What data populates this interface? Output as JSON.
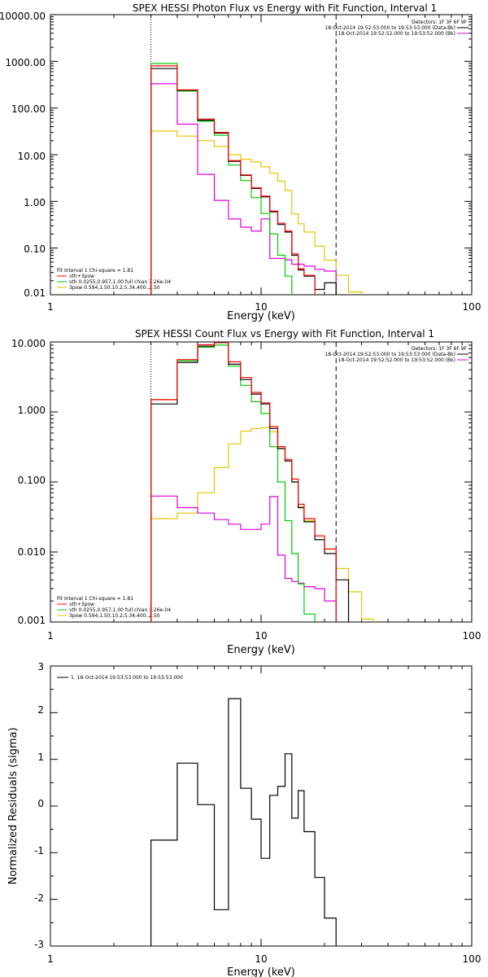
{
  "colors": {
    "black": "#000000",
    "red": "#ff0000",
    "green": "#00cc00",
    "magenta": "#e000e0",
    "yellow": "#e6c300"
  },
  "chart_data": [
    {
      "type": "line",
      "title": "SPEX HESSI Photon Flux vs Energy with Fit Function, Interval 1",
      "xlabel": "Energy (keV)",
      "ylabel": "",
      "xscale": "log",
      "yscale": "log",
      "xlim": [
        1,
        100
      ],
      "ylim": [
        0.01,
        10000
      ],
      "xtick_labels": [
        "1",
        "10",
        "100"
      ],
      "ytick_values": [
        0.01,
        0.1,
        1,
        10,
        100,
        1000,
        10000
      ],
      "ytick_labels": [
        "0.01",
        "0.10",
        "1.00",
        "10.00",
        "100.00",
        "1000.00",
        "10000.00"
      ],
      "legend_top": {
        "placement": "top-right",
        "header": "Detectors: 1F 3F 6F 9F",
        "entries": [
          {
            "label": "18-Oct-2014 19:52:53.000 to 19:53:53.000 (Data-Bk)",
            "color": "#000000"
          },
          {
            "label": "18-Oct-2014 19:52:52.000 to 19:53:52.000 (Bk)",
            "color": "#e000e0"
          }
        ]
      },
      "legend_bottom": {
        "placement": "bottom-left",
        "header": "Fit Interval 1    Chi-square = 1.81",
        "entries": [
          {
            "label": "vth+3pow",
            "color": "#ff0000"
          },
          {
            "label": "vth 0.0255,0.957,1.00  full chian 1.26e-04",
            "color": "#00cc00"
          },
          {
            "label": "3pow 0.594,1.50,10.2,5.34,400.,2.50",
            "color": "#e6c300"
          }
        ]
      },
      "edges": [
        3.0,
        4.0,
        5.0,
        6.0,
        7.0,
        8.0,
        9.0,
        10.0,
        11.0,
        12.0,
        13.0,
        14.0,
        15.0,
        16.0,
        18.0,
        20.0,
        22.7,
        26.0,
        30.0
      ],
      "vlines": {
        "dotted": 3.0,
        "dashed": 22.7
      },
      "series": [
        {
          "key": "data",
          "color": "#000000",
          "values": [
            700,
            240,
            55,
            29,
            7.2,
            3.6,
            1.9,
            1.25,
            0.6,
            0.32,
            0.22,
            0.07,
            0.034,
            0.025,
            0.013,
            0.018
          ]
        },
        {
          "key": "fit",
          "color": "#ff0000",
          "values": [
            800,
            245,
            58,
            30,
            7.5,
            3.7,
            1.95,
            1.3,
            0.62,
            0.34,
            0.23,
            0.075,
            0.036,
            0.026
          ]
        },
        {
          "key": "vth",
          "color": "#00cc00",
          "values": [
            900,
            230,
            52,
            26,
            6.0,
            2.8,
            1.2,
            0.55,
            0.2,
            0.07,
            0.025,
            0.0094
          ]
        },
        {
          "key": "pow",
          "color": "#e6c300",
          "values": [
            32,
            25,
            20,
            15,
            10,
            8,
            7,
            5.5,
            4.0,
            2.7,
            1.7,
            0.54,
            0.33,
            0.22,
            0.11,
            0.055,
            0.026,
            0.0115
          ]
        },
        {
          "key": "bk",
          "color": "#e000e0",
          "values": [
            330,
            45,
            3.8,
            1.05,
            0.42,
            0.28,
            0.23,
            0.42,
            0.06,
            0.06,
            0.056,
            0.045,
            0.045,
            0.041,
            0.035,
            0.032
          ]
        }
      ]
    },
    {
      "type": "line",
      "title": "SPEX HESSI Count Flux vs Energy with Fit Function, Interval 1",
      "xlabel": "Energy (keV)",
      "ylabel": "",
      "xscale": "log",
      "yscale": "log",
      "xlim": [
        1,
        100
      ],
      "ylim": [
        0.001,
        10
      ],
      "xtick_labels": [
        "1",
        "10",
        "100"
      ],
      "ytick_values": [
        0.001,
        0.01,
        0.1,
        1,
        10
      ],
      "ytick_labels": [
        "0.001",
        "0.010",
        "0.100",
        "1.000",
        "10.000"
      ],
      "legend_top": {
        "placement": "top-right",
        "header": "Detectors: 1F 3F 6F 9F",
        "entries": [
          {
            "label": "18-Oct-2014 19:52:53.000 to 19:53:53.000 (Data-Bk)",
            "color": "#000000"
          },
          {
            "label": "18-Oct-2014 19:52:52.000 to 19:53:52.000 (Bk)",
            "color": "#e000e0"
          }
        ]
      },
      "legend_bottom": {
        "placement": "bottom-left",
        "header": "Fit Interval 1    Chi-square = 1.81",
        "entries": [
          {
            "label": "vth+3pow",
            "color": "#ff0000"
          },
          {
            "label": "vth 0.0255,0.957,1.00  full chian 1.26e-04",
            "color": "#00cc00"
          },
          {
            "label": "3pow 0.594,1.50,10.2,5.34,400.,2.50",
            "color": "#e6c300"
          }
        ]
      },
      "edges": [
        3.0,
        4.0,
        5.0,
        6.0,
        7.0,
        8.0,
        9.0,
        10.0,
        11.0,
        12.0,
        13.0,
        14.0,
        15.0,
        16.0,
        18.0,
        20.0,
        22.7,
        26.0,
        30.0,
        34.0
      ],
      "vlines": {
        "dotted": 3.0,
        "dashed": 22.7
      },
      "series": [
        {
          "key": "data",
          "color": "#000000",
          "values": [
            1.3,
            5.1,
            8.7,
            9.8,
            4.8,
            2.9,
            1.8,
            1.3,
            0.58,
            0.3,
            0.2,
            0.1,
            0.043,
            0.027,
            0.015,
            0.0095,
            0.004
          ]
        },
        {
          "key": "fit",
          "color": "#ff0000",
          "values": [
            1.5,
            5.6,
            9.1,
            10.0,
            5.2,
            3.1,
            1.9,
            1.35,
            0.62,
            0.32,
            0.21,
            0.11,
            0.048,
            0.03,
            0.017,
            0.011
          ]
        },
        {
          "key": "vth",
          "color": "#00cc00",
          "values": [
            1.5,
            5.4,
            8.4,
            9.0,
            4.5,
            2.4,
            1.4,
            0.95,
            0.32,
            0.1,
            0.028,
            0.0095,
            0.0035,
            0.0013
          ]
        },
        {
          "key": "pow",
          "color": "#e6c300",
          "values": [
            0.03,
            0.036,
            0.07,
            0.16,
            0.35,
            0.53,
            0.58,
            0.6,
            0.52,
            0.3,
            0.2,
            0.1,
            0.044,
            0.028,
            0.017,
            0.011,
            0.0058,
            0.0027,
            0.0011
          ]
        },
        {
          "key": "bk",
          "color": "#e000e0",
          "values": [
            0.063,
            0.043,
            0.036,
            0.029,
            0.025,
            0.021,
            0.021,
            0.025,
            0.062,
            0.009,
            0.0042,
            0.0038,
            0.0036,
            0.0032,
            0.003,
            0.002
          ]
        }
      ]
    },
    {
      "type": "line",
      "title": "",
      "xlabel": "Energy (keV)",
      "ylabel": "Normalized Residuals (sigma)",
      "xscale": "log",
      "yscale": "linear",
      "xlim": [
        1,
        100
      ],
      "ylim": [
        -3,
        3
      ],
      "xtick_labels": [
        "1",
        "10",
        "100"
      ],
      "ytick_values": [
        -3,
        -2,
        -1,
        0,
        1,
        2,
        3
      ],
      "ytick_labels": [
        "-3",
        "-2",
        "-1",
        "0",
        "1",
        "2",
        "3"
      ],
      "legend": {
        "placement": "top-left",
        "entries": [
          {
            "label": "1. 18-Oct-2014 19:53:53.000 to 19:53:53.000",
            "color": "#000000"
          }
        ]
      },
      "edges": [
        3.0,
        4.0,
        5.0,
        6.0,
        7.0,
        8.0,
        9.0,
        10.0,
        11.0,
        12.0,
        13.0,
        14.0,
        15.0,
        16.0,
        18.0,
        20.0,
        22.7
      ],
      "series": [
        {
          "key": "resid",
          "color": "#000000",
          "values": [
            -0.73,
            0.92,
            0.03,
            -2.22,
            2.3,
            0.38,
            -0.28,
            -1.12,
            0.23,
            0.42,
            1.12,
            -0.26,
            0.33,
            -0.55,
            -1.53,
            -2.4
          ]
        }
      ]
    }
  ]
}
